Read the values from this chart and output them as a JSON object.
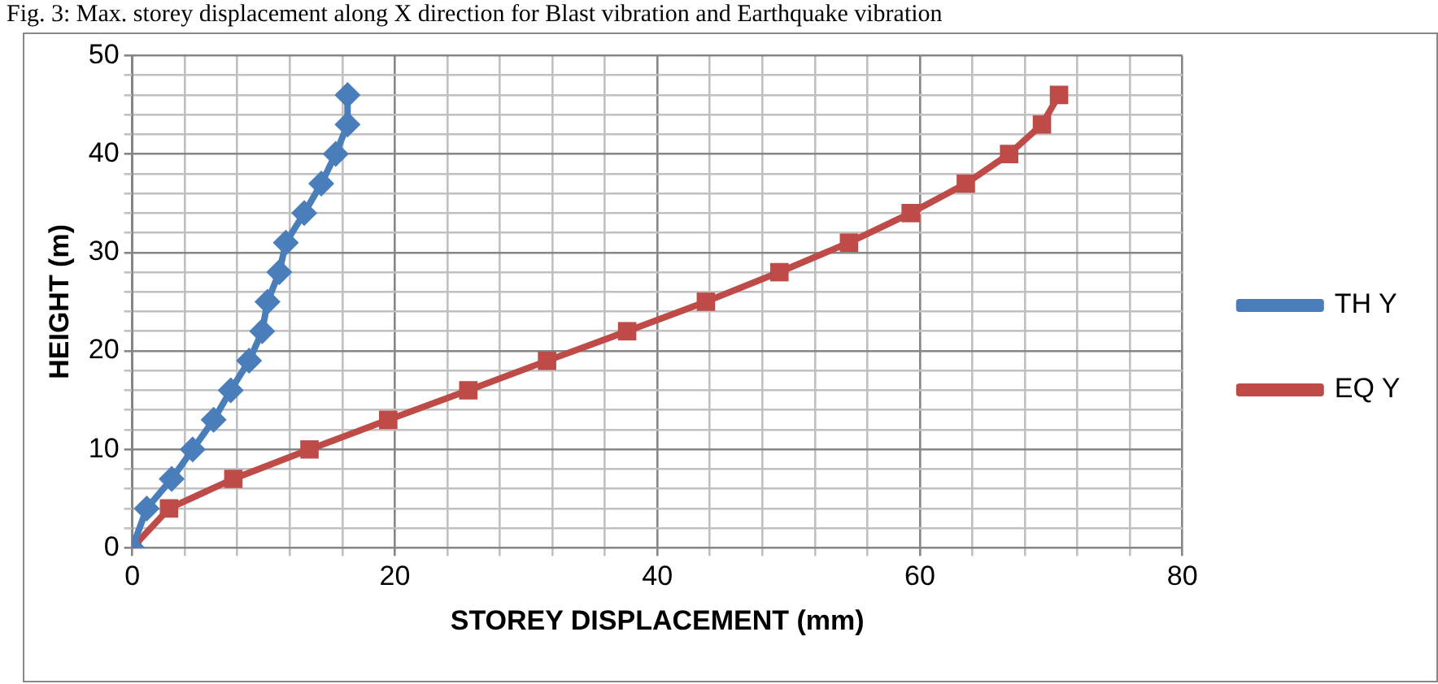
{
  "chart_data": {
    "type": "line",
    "title": "Fig. 3: Max. storey displacement along X direction for Blast vibration and Earthquake vibration",
    "xlabel": "STOREY DISPLACEMENT (mm)",
    "ylabel": "HEIGHT (m)",
    "legend": "right",
    "grid": true,
    "xlim": [
      0,
      80
    ],
    "xticks": [
      0,
      {
        "value": 4,
        "label": null
      },
      {
        "value": 8,
        "label": null
      },
      {
        "value": 12,
        "label": null
      },
      {
        "value": 16,
        "label": null
      },
      20,
      {
        "value": 24,
        "label": null
      },
      {
        "value": 28,
        "label": null
      },
      {
        "value": 32,
        "label": null
      },
      {
        "value": 36,
        "label": null
      },
      40,
      {
        "value": 44,
        "label": null
      },
      {
        "value": 48,
        "label": null
      },
      {
        "value": 52,
        "label": null
      },
      {
        "value": 56,
        "label": null
      },
      60,
      {
        "value": 64,
        "label": null
      },
      {
        "value": 68,
        "label": null
      },
      {
        "value": 72,
        "label": null
      },
      {
        "value": 76,
        "label": null
      },
      80
    ],
    "ylim": [
      0,
      50
    ],
    "yticks": [
      0,
      {
        "value": 2,
        "label": null
      },
      {
        "value": 4,
        "label": null
      },
      {
        "value": 6,
        "label": null
      },
      {
        "value": 8,
        "label": null
      },
      10,
      {
        "value": 12,
        "label": null
      },
      {
        "value": 14,
        "label": null
      },
      {
        "value": 16,
        "label": null
      },
      {
        "value": 18,
        "label": null
      },
      20,
      {
        "value": 22,
        "label": null
      },
      {
        "value": 24,
        "label": null
      },
      {
        "value": 26,
        "label": null
      },
      {
        "value": 28,
        "label": null
      },
      30,
      {
        "value": 32,
        "label": null
      },
      {
        "value": 34,
        "label": null
      },
      {
        "value": 36,
        "label": null
      },
      {
        "value": 38,
        "label": null
      },
      40,
      {
        "value": 42,
        "label": null
      },
      {
        "value": 44,
        "label": null
      },
      {
        "value": 46,
        "label": null
      },
      {
        "value": 48,
        "label": null
      },
      50
    ],
    "series": [
      {
        "name": "TH Y",
        "color": "#4a7ebb",
        "marker": "diamond",
        "x": [
          0,
          1.1,
          3.0,
          4.6,
          6.2,
          7.5,
          8.9,
          9.9,
          10.3,
          11.2,
          11.7,
          13.1,
          14.4,
          15.5,
          16.4,
          16.4
        ],
        "values": [
          0,
          4,
          7,
          10,
          13,
          16,
          19,
          22,
          25,
          28,
          31,
          34,
          37,
          40,
          43,
          46
        ]
      },
      {
        "name": "EQ Y",
        "color": "#be4b48",
        "marker": "square",
        "x": [
          0,
          2.8,
          7.7,
          13.5,
          19.5,
          25.6,
          31.6,
          37.7,
          43.7,
          49.3,
          54.6,
          59.3,
          63.5,
          66.8,
          69.3,
          70.6
        ],
        "values": [
          0,
          4,
          7,
          10,
          13,
          16,
          19,
          22,
          25,
          28,
          31,
          34,
          37,
          40,
          43,
          46
        ]
      }
    ]
  }
}
